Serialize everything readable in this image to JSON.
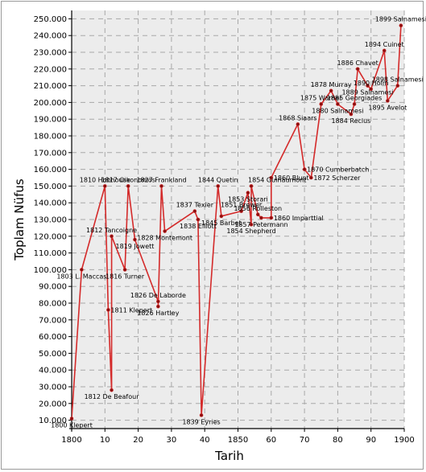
{
  "chart_data": {
    "type": "line",
    "xlabel": "Tarih",
    "ylabel": "Toplam Nüfus",
    "xlim": [
      1800,
      1900
    ],
    "ylim": [
      5000,
      255000
    ],
    "x_ticks": [
      {
        "value": 1800,
        "label": "1800"
      },
      {
        "value": 1810,
        "label": "10"
      },
      {
        "value": 1820,
        "label": "20"
      },
      {
        "value": 1830,
        "label": "30"
      },
      {
        "value": 1840,
        "label": "40"
      },
      {
        "value": 1850,
        "label": "1850"
      },
      {
        "value": 1860,
        "label": "60"
      },
      {
        "value": 1870,
        "label": "70"
      },
      {
        "value": 1880,
        "label": "80"
      },
      {
        "value": 1890,
        "label": "90"
      },
      {
        "value": 1900,
        "label": "1900"
      }
    ],
    "y_ticks": [
      10000,
      20000,
      30000,
      40000,
      50000,
      60000,
      70000,
      80000,
      90000,
      100000,
      110000,
      120000,
      130000,
      140000,
      150000,
      160000,
      170000,
      180000,
      190000,
      200000,
      210000,
      220000,
      230000,
      240000,
      250000
    ],
    "y_tick_labels": [
      "10.000",
      "20.000",
      "30.000",
      "40.000",
      "50.000",
      "60.000",
      "70.000",
      "80.000",
      "90.000",
      "100.000",
      "110.000",
      "120.000",
      "130.000",
      "140.000",
      "150.000",
      "160.000",
      "170.000",
      "180.000",
      "190.000",
      "200.000",
      "210.000",
      "220.000",
      "230.000",
      "240.000",
      "250.000"
    ],
    "grid": true,
    "line_color": "#d42a2a",
    "series": [
      {
        "points": [
          {
            "x": 1800,
            "y": 11000,
            "label": "1800 Klepert",
            "pos": "below"
          },
          {
            "x": 1803,
            "y": 100000,
            "label": "1803 L. Maccas",
            "pos": "below"
          },
          {
            "x": 1810,
            "y": 150000,
            "label": "1810 Hobhouse",
            "pos": "above"
          },
          {
            "x": 1811,
            "y": 76000,
            "label": "1811 Klepert",
            "pos": "right"
          },
          {
            "x": 1812,
            "y": 28000,
            "label": "1812 De Beafour",
            "pos": "below"
          },
          {
            "x": 1812,
            "y": 120000,
            "label": "1812 Tancoigne",
            "pos": "above"
          },
          {
            "x": 1816,
            "y": 100000,
            "label": "1816 Turner",
            "pos": "below"
          },
          {
            "x": 1817,
            "y": 150000,
            "label": "1817 Oikonomos",
            "pos": "above"
          },
          {
            "x": 1819,
            "y": 118000,
            "label": "1819 Jowett",
            "pos": "below"
          },
          {
            "x": 1826,
            "y": 81000,
            "label": "1826 De Laborde",
            "pos": "above"
          },
          {
            "x": 1826,
            "y": 78000,
            "label": "1826 Hartley",
            "pos": "below"
          },
          {
            "x": 1827,
            "y": 150000,
            "label": "1827 Frankland",
            "pos": "above"
          },
          {
            "x": 1828,
            "y": 123000,
            "label": "1828 Montemont",
            "pos": "below"
          },
          {
            "x": 1837,
            "y": 135000,
            "label": "1837 Texier",
            "pos": "above"
          },
          {
            "x": 1838,
            "y": 130000,
            "label": "1838 Elliott",
            "pos": "below"
          },
          {
            "x": 1839,
            "y": 13000,
            "label": "1839 Eyries",
            "pos": "below"
          },
          {
            "x": 1844,
            "y": 150000,
            "label": "1844 Quetin",
            "pos": "above"
          },
          {
            "x": 1845,
            "y": 132000,
            "label": "1845 Barbet",
            "pos": "below"
          },
          {
            "x": 1851,
            "y": 135000,
            "label": "1851 Brewer",
            "pos": "above"
          },
          {
            "x": 1853,
            "y": 146000,
            "label": "1853 Storari",
            "pos": "below"
          },
          {
            "x": 1854,
            "y": 127000,
            "label": "1854 Shepherd",
            "pos": "below"
          },
          {
            "x": 1854,
            "y": 150000,
            "label": "1854 Guinaumont",
            "pos": "aboveR"
          },
          {
            "x": 1856,
            "y": 133000,
            "label": "1856 Rolleston",
            "pos": "above"
          },
          {
            "x": 1857,
            "y": 131000,
            "label": "1857 Petermann",
            "pos": "below"
          },
          {
            "x": 1860,
            "y": 131000,
            "label": "1860 Imparttial",
            "pos": "right"
          },
          {
            "x": 1860,
            "y": 155000,
            "label": "1860 Blunt",
            "pos": "right"
          },
          {
            "x": 1868,
            "y": 187000,
            "label": "1868 Siaars",
            "pos": "above"
          },
          {
            "x": 1870,
            "y": 160000,
            "label": "1870 Cumberbatch",
            "pos": "right"
          },
          {
            "x": 1872,
            "y": 155000,
            "label": "1872 Scherzer",
            "pos": "right"
          },
          {
            "x": 1875,
            "y": 199000,
            "label": "1875 Warner",
            "pos": "above"
          },
          {
            "x": 1878,
            "y": 207000,
            "label": "1878 Murray",
            "pos": "above"
          },
          {
            "x": 1880,
            "y": 199000,
            "label": "1880 Salnamesi",
            "pos": "below"
          },
          {
            "x": 1884,
            "y": 193000,
            "label": "1884 Reclus",
            "pos": "below"
          },
          {
            "x": 1885,
            "y": 199000,
            "label": "1885 Georgiades",
            "pos": "above"
          },
          {
            "x": 1886,
            "y": 220000,
            "label": "1886 Chavet",
            "pos": "above"
          },
          {
            "x": 1889,
            "y": 210000,
            "label": "1889 Salnamesi",
            "pos": "below"
          },
          {
            "x": 1890,
            "y": 208000,
            "label": "1890 Holm",
            "pos": "above"
          },
          {
            "x": 1894,
            "y": 231000,
            "label": "1894 Cuinet",
            "pos": "above"
          },
          {
            "x": 1895,
            "y": 201000,
            "label": "1895 Avelot",
            "pos": "below"
          },
          {
            "x": 1898,
            "y": 210000,
            "label": "1898 Salnamesi",
            "pos": "above"
          },
          {
            "x": 1899,
            "y": 246000,
            "label": "1899 Salnamesi",
            "pos": "above"
          }
        ]
      }
    ]
  }
}
